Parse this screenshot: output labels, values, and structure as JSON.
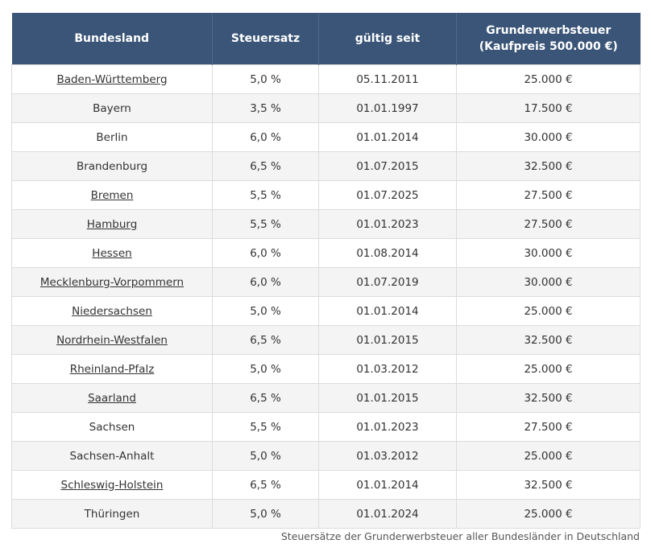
{
  "table": {
    "headers": {
      "state": "Bundesland",
      "rate": "Steuersatz",
      "valid_since": "gültig seit",
      "tax_line1": "Grunderwerbsteuer",
      "tax_line2": "(Kaufpreis 500.000 €)"
    },
    "rows": [
      {
        "state": "Baden-Württemberg",
        "link": true,
        "rate": "5,0 %",
        "valid_since": "05.11.2011",
        "tax": "25.000 €"
      },
      {
        "state": "Bayern",
        "link": false,
        "rate": "3,5 %",
        "valid_since": "01.01.1997",
        "tax": "17.500 €"
      },
      {
        "state": "Berlin",
        "link": false,
        "rate": "6,0 %",
        "valid_since": "01.01.2014",
        "tax": "30.000 €"
      },
      {
        "state": "Brandenburg",
        "link": false,
        "rate": "6,5 %",
        "valid_since": "01.07.2015",
        "tax": "32.500 €"
      },
      {
        "state": "Bremen",
        "link": true,
        "rate": "5,5 %",
        "valid_since": "01.07.2025",
        "tax": "27.500 €"
      },
      {
        "state": "Hamburg",
        "link": true,
        "rate": "5,5 %",
        "valid_since": "01.01.2023",
        "tax": "27.500 €"
      },
      {
        "state": "Hessen",
        "link": true,
        "rate": "6,0 %",
        "valid_since": "01.08.2014",
        "tax": "30.000 €"
      },
      {
        "state": "Mecklenburg-Vorpommern",
        "link": true,
        "rate": "6,0 %",
        "valid_since": "01.07.2019",
        "tax": "30.000 €"
      },
      {
        "state": "Niedersachsen",
        "link": true,
        "rate": "5,0 %",
        "valid_since": "01.01.2014",
        "tax": "25.000 €"
      },
      {
        "state": "Nordrhein-Westfalen",
        "link": true,
        "rate": "6,5 %",
        "valid_since": "01.01.2015",
        "tax": "32.500 €"
      },
      {
        "state": "Rheinland-Pfalz",
        "link": true,
        "rate": "5,0 %",
        "valid_since": "01.03.2012",
        "tax": "25.000 €"
      },
      {
        "state": "Saarland",
        "link": true,
        "rate": "6,5 %",
        "valid_since": "01.01.2015",
        "tax": "32.500 €"
      },
      {
        "state": "Sachsen",
        "link": false,
        "rate": "5,5 %",
        "valid_since": "01.01.2023",
        "tax": "27.500 €"
      },
      {
        "state": "Sachsen-Anhalt",
        "link": false,
        "rate": "5,0 %",
        "valid_since": "01.03.2012",
        "tax": "25.000 €"
      },
      {
        "state": "Schleswig-Holstein",
        "link": true,
        "rate": "6,5 %",
        "valid_since": "01.01.2014",
        "tax": "32.500 €"
      },
      {
        "state": "Thüringen",
        "link": false,
        "rate": "5,0 %",
        "valid_since": "01.01.2024",
        "tax": "25.000 €"
      }
    ]
  },
  "caption": "Steuersätze der Grunderwerbsteuer aller Bundesländer in Deutschland",
  "colors": {
    "header_bg": "#3a5577",
    "header_text": "#ffffff",
    "row_alt_bg": "#f4f4f4",
    "border": "#dcdcdc"
  }
}
